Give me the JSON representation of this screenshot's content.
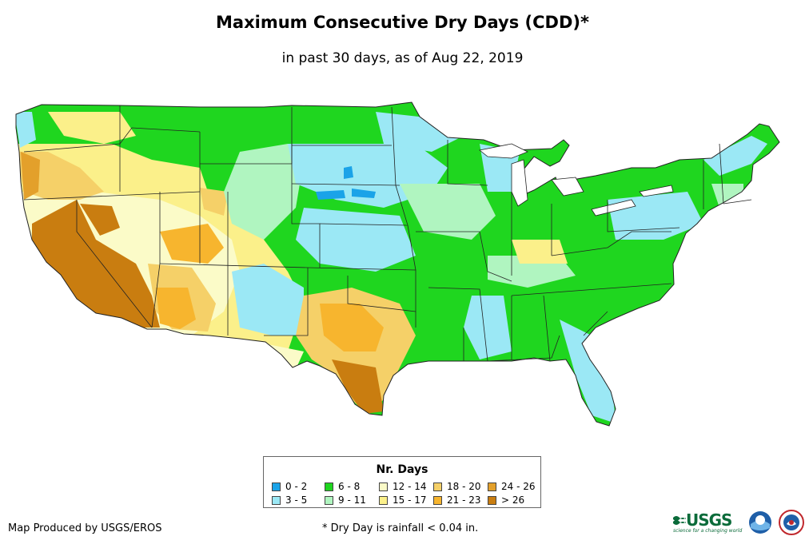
{
  "title": "Maximum Consecutive Dry Days (CDD)*",
  "subtitle": "in past 30 days, as of Aug 22, 2019",
  "legend": {
    "title": "Nr. Days",
    "items": [
      {
        "label": "0 - 2",
        "color": "#1aa3e8"
      },
      {
        "label": "3 - 5",
        "color": "#9be8f5"
      },
      {
        "label": "6 - 8",
        "color": "#1fd61f"
      },
      {
        "label": "9 - 11",
        "color": "#b0f5c0"
      },
      {
        "label": "12 - 14",
        "color": "#fbfbc8"
      },
      {
        "label": "15 - 17",
        "color": "#fbf08a"
      },
      {
        "label": "18 - 20",
        "color": "#f5d068"
      },
      {
        "label": "21 - 23",
        "color": "#f7b52e"
      },
      {
        "label": "24 - 26",
        "color": "#e3a02b"
      },
      {
        "label": "> 26",
        "color": "#c97d10"
      }
    ]
  },
  "credit": "Map Produced by USGS/EROS",
  "footnote": "* Dry Day is rainfall < 0.04 in.",
  "logos": {
    "usgs": "USGS",
    "usgs_tagline": "science for a changing world",
    "noaa": "noaa",
    "nws": "National Weather Service"
  }
}
